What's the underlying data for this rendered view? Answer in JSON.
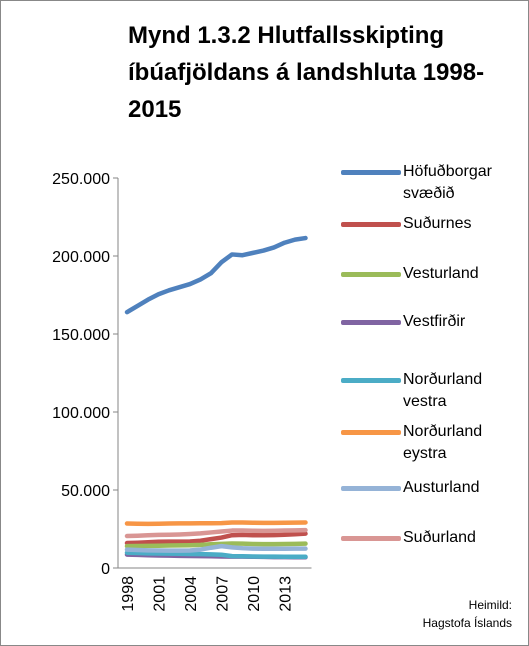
{
  "chart_data": {
    "type": "line",
    "title": "Mynd 1.3.2 Hlutfallsskipting íbúafjöldans á landshluta 1998-2015",
    "annotations": [
      "Heimild:",
      "Hagstofa Íslands"
    ],
    "categories": [
      "1998",
      null,
      null,
      "2001",
      null,
      null,
      "2004",
      null,
      null,
      "2007",
      null,
      null,
      "2010",
      null,
      null,
      "2013",
      null,
      null
    ],
    "series": [
      {
        "name": "Höfuðborgar svæðið",
        "color": "#4f81bd",
        "values": [
          164000,
          168000,
          172000,
          175500,
          178000,
          180000,
          182000,
          185000,
          189000,
          196000,
          201000,
          200500,
          202000,
          203500,
          205500,
          208500,
          210500,
          211500
        ]
      },
      {
        "name": "Suðurnes",
        "color": "#c0504d",
        "values": [
          16000,
          16200,
          16500,
          16800,
          16900,
          16900,
          17000,
          17500,
          18500,
          19500,
          21000,
          21200,
          21000,
          21000,
          21100,
          21300,
          21600,
          22000
        ]
      },
      {
        "name": "Vesturland",
        "color": "#9bbb59",
        "values": [
          14000,
          14100,
          14200,
          14300,
          14400,
          14500,
          14600,
          14800,
          15200,
          15500,
          15700,
          15600,
          15400,
          15300,
          15300,
          15400,
          15500,
          15600
        ]
      },
      {
        "name": "Vestfirðir",
        "color": "#8064a2",
        "values": [
          8600,
          8400,
          8200,
          8000,
          7900,
          7800,
          7700,
          7600,
          7500,
          7400,
          7300,
          7300,
          7200,
          7100,
          7000,
          7000,
          6900,
          6900
        ]
      },
      {
        "name": "Norðurland vestra",
        "color": "#4bacc6",
        "values": [
          9800,
          9600,
          9400,
          9300,
          9200,
          9100,
          9000,
          8900,
          8700,
          8500,
          7600,
          7500,
          7400,
          7300,
          7300,
          7200,
          7200,
          7200
        ]
      },
      {
        "name": "Norðurland eystra",
        "color": "#f79646",
        "values": [
          28500,
          28400,
          28300,
          28400,
          28500,
          28600,
          28600,
          28700,
          28700,
          28800,
          29200,
          29200,
          29000,
          28900,
          28900,
          29000,
          29100,
          29200
        ]
      },
      {
        "name": "Austurland",
        "color": "#95b3d7",
        "values": [
          11800,
          11500,
          11300,
          11200,
          11100,
          11100,
          11200,
          11800,
          13000,
          14000,
          13200,
          12700,
          12400,
          12300,
          12300,
          12300,
          12400,
          12400
        ]
      },
      {
        "name": "Suðurland",
        "color": "#d99694",
        "values": [
          20500,
          20700,
          21000,
          21200,
          21300,
          21500,
          21800,
          22200,
          22800,
          23400,
          24000,
          24000,
          23900,
          23800,
          23900,
          24000,
          24100,
          24300
        ]
      }
    ],
    "ylim": [
      0,
      250000
    ],
    "yticks": [
      0,
      {
        "value": 50000,
        "label": "50.000"
      },
      {
        "value": 100000,
        "label": "100.000"
      },
      {
        "value": 150000,
        "label": "150.000"
      },
      {
        "value": 200000,
        "label": "200.000"
      },
      {
        "value": 250000,
        "label": "250.000"
      }
    ]
  }
}
